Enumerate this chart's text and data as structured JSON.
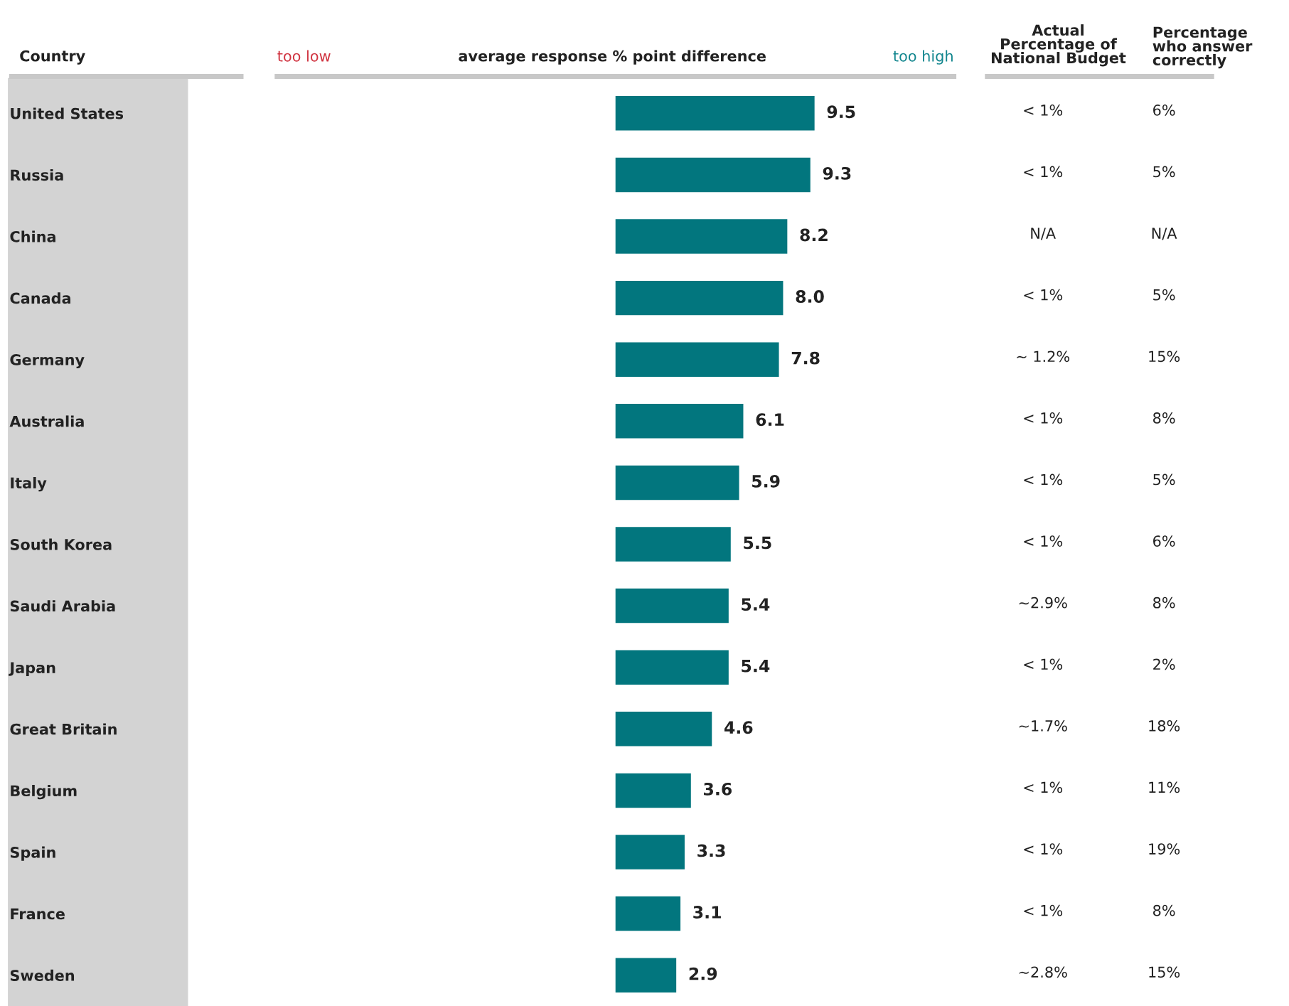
{
  "chart_data": [
    {
      "type": "bar",
      "orientation": "horizontal",
      "title": "average response % point difference",
      "ylabel": "Country",
      "annotations": [
        "too low",
        "too high"
      ],
      "color": "#02767e",
      "grid": false,
      "value_labels": [
        "9.5",
        "9.3",
        "8.2",
        "8.0",
        "7.8",
        "6.1",
        "5.9",
        "5.5",
        "5.4",
        "5.4",
        "4.6",
        "3.6",
        "3.3",
        "3.1",
        "2.9"
      ],
      "categories": [
        "United States",
        "Russia",
        "China",
        "Canada",
        "Germany",
        "Australia",
        "Italy",
        "South Korea",
        "Saudi Arabia",
        "Japan",
        "Great Britain",
        "Belgium",
        "Spain",
        "France",
        "Sweden"
      ],
      "values": [
        9.5,
        9.3,
        8.2,
        8.0,
        7.8,
        6.1,
        5.9,
        5.5,
        5.4,
        5.4,
        4.6,
        3.6,
        3.3,
        3.1,
        2.9
      ]
    },
    {
      "type": "other",
      "title": "Actual\nPercentage of\nNational Budget",
      "annotations": [
        "< 1%",
        "< 1%",
        "N/A",
        "< 1%",
        "~ 1.2%",
        "< 1%",
        "< 1%",
        "< 1%",
        "~2.9%",
        "< 1%",
        "~1.7%",
        "< 1%",
        "< 1%",
        "< 1%",
        "~2.8%"
      ]
    },
    {
      "type": "other",
      "title": "Percentage\nwho answer\ncorrectly",
      "annotations": [
        "6%",
        "5%",
        "N/A",
        "5%",
        "15%",
        "8%",
        "5%",
        "6%",
        "8%",
        "2%",
        "18%",
        "11%",
        "19%",
        "8%",
        "15%"
      ]
    }
  ]
}
